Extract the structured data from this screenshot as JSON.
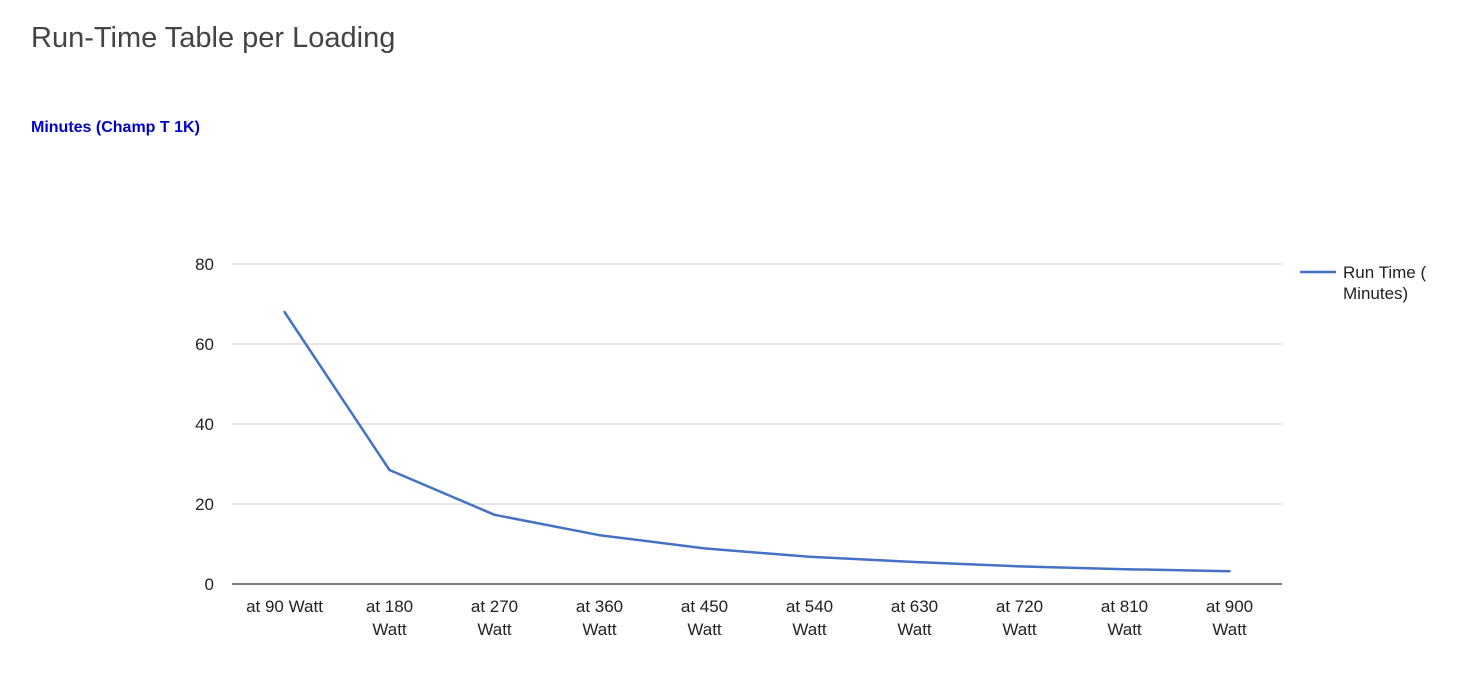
{
  "page": {
    "title": "Run-Time Table per Loading"
  },
  "colors": {
    "series": "#4472c4",
    "grid": "#cccccc",
    "baseline": "#333333"
  },
  "chart_data": {
    "type": "line",
    "title": "",
    "subtitle": "Minutes (Champ T 1K)",
    "xlabel": "",
    "ylabel": "",
    "ylim": [
      0,
      80
    ],
    "yticks": [
      0,
      20,
      40,
      60,
      80
    ],
    "grid": true,
    "legend_position": "right",
    "categories": [
      [
        "at 90 Watt"
      ],
      [
        "at 180",
        "Watt"
      ],
      [
        "at 270",
        "Watt"
      ],
      [
        "at 360",
        "Watt"
      ],
      [
        "at 450",
        "Watt"
      ],
      [
        "at 540",
        "Watt"
      ],
      [
        "at 630",
        "Watt"
      ],
      [
        "at 720",
        "Watt"
      ],
      [
        "at 810",
        "Watt"
      ],
      [
        "at 900",
        "Watt"
      ]
    ],
    "series": [
      {
        "name": [
          "Run Time (",
          "Minutes)"
        ],
        "values": [
          68,
          28.5,
          17.3,
          12.2,
          8.9,
          6.8,
          5.5,
          4.4,
          3.7,
          3.2
        ]
      }
    ]
  }
}
